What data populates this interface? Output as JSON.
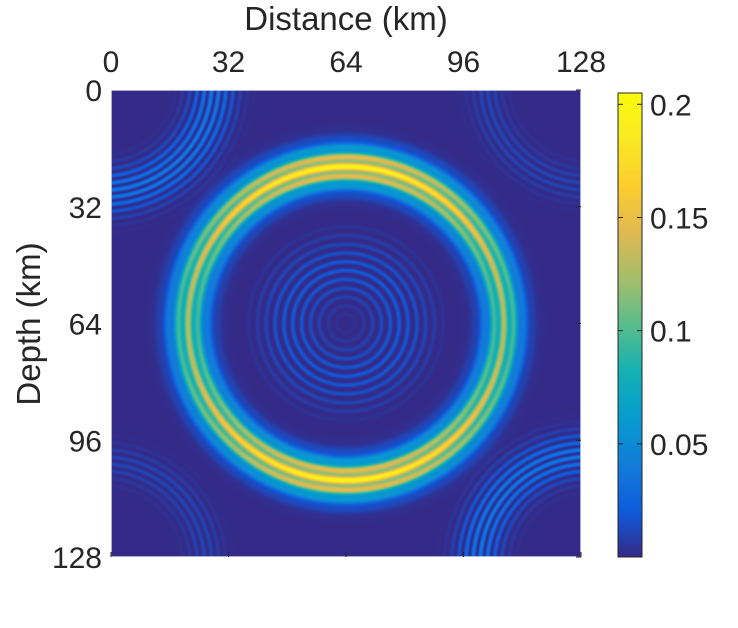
{
  "chart_data": {
    "type": "heatmap",
    "title": "",
    "xlabel": "Distance (km)",
    "ylabel": "Depth (km)",
    "x_axis_position": "top",
    "y_axis_direction": "reversed",
    "xlim": [
      0,
      128
    ],
    "ylim": [
      0,
      128
    ],
    "x_ticks": [
      "0",
      "32",
      "64",
      "96",
      "128"
    ],
    "y_ticks": [
      "0",
      "32",
      "64",
      "96",
      "128"
    ],
    "x_tick_values": [
      0,
      32,
      64,
      96,
      128
    ],
    "y_tick_values": [
      0,
      32,
      64,
      96,
      128
    ],
    "grid": false,
    "colormap": "parula",
    "colorbar": {
      "position": "right",
      "range": [
        0,
        0.205
      ],
      "ticks": [
        "0.05",
        "0.1",
        "0.15",
        "0.2"
      ],
      "tick_values": [
        0.05,
        0.1,
        0.15,
        0.2
      ]
    },
    "field": {
      "description_center_km": [
        64,
        64
      ],
      "main_ring": {
        "radius_km": 43,
        "peak_value": 0.2,
        "min_value_on_ring": 0.13
      },
      "inner_weak_rings": {
        "radius_range_km": [
          4,
          26
        ],
        "peak_value": 0.02
      },
      "corner_arcs": {
        "value": 0.04
      },
      "background_value": 0.0
    }
  }
}
